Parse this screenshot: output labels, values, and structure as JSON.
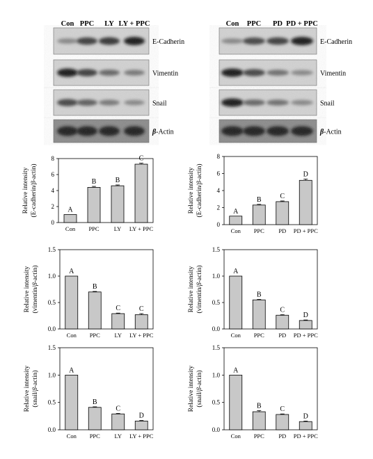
{
  "blots": [
    {
      "lanes": [
        "Con",
        "PPC",
        "LY",
        "LY + PPC"
      ],
      "rows": [
        {
          "label": "E-Cadherin",
          "levels": [
            0.35,
            0.8,
            0.85,
            1.0
          ]
        },
        {
          "label": "Vimentin",
          "levels": [
            1.0,
            0.8,
            0.55,
            0.45
          ]
        },
        {
          "label": "Snail",
          "levels": [
            0.75,
            0.6,
            0.45,
            0.35
          ]
        },
        {
          "label_prefix": "β",
          "label": "-Actin",
          "levels": [
            0.85,
            0.85,
            0.85,
            0.85
          ]
        }
      ]
    },
    {
      "lanes": [
        "Con",
        "PPC",
        "PD",
        "PD + PPC"
      ],
      "rows": [
        {
          "label": "E-Cadherin",
          "levels": [
            0.35,
            0.75,
            0.8,
            1.0
          ]
        },
        {
          "label": "Vimentin",
          "levels": [
            1.0,
            0.75,
            0.5,
            0.35
          ]
        },
        {
          "label": "Snail",
          "levels": [
            1.0,
            0.55,
            0.5,
            0.35
          ]
        },
        {
          "label_prefix": "β",
          "label": "-Actin",
          "levels": [
            0.85,
            0.85,
            0.85,
            0.85
          ]
        }
      ]
    }
  ],
  "chart_data": [
    {
      "type": "bar",
      "categories": [
        "Con",
        "PPC",
        "LY",
        "LY + PPC"
      ],
      "values": [
        1.0,
        4.4,
        4.6,
        7.3
      ],
      "errors": [
        0.0,
        0.12,
        0.1,
        0.12
      ],
      "letters": [
        "A",
        "B",
        "B",
        "C"
      ],
      "ylabel": "Relative intensity",
      "ylabel2": "(E-cadherin/β-actin)",
      "ylim": [
        0,
        8
      ],
      "yticks": [
        "0",
        "2",
        "4",
        "6",
        "8"
      ],
      "bar_color": "#c8c8c8"
    },
    {
      "type": "bar",
      "categories": [
        "Con",
        "PPC",
        "PD",
        "PD + PPC"
      ],
      "values": [
        1.0,
        2.3,
        2.7,
        5.2
      ],
      "errors": [
        0.0,
        0.08,
        0.08,
        0.15
      ],
      "letters": [
        "A",
        "B",
        "C",
        "D"
      ],
      "ylabel": "Relative intensity",
      "ylabel2": "(E-cadherin/β-actin)",
      "ylim": [
        0,
        8
      ],
      "yticks": [
        "0",
        "2",
        "4",
        "6",
        "8"
      ],
      "bar_color": "#c8c8c8"
    },
    {
      "type": "bar",
      "categories": [
        "Con",
        "PPC",
        "LY",
        "LY + PPC"
      ],
      "values": [
        1.0,
        0.7,
        0.29,
        0.27
      ],
      "errors": [
        0.0,
        0.01,
        0.01,
        0.02
      ],
      "letters": [
        "A",
        "B",
        "C",
        "C"
      ],
      "ylabel": "Relative intensity",
      "ylabel2": "(vimentin/β-actin)",
      "ylim": [
        0,
        1.5
      ],
      "yticks": [
        "0.0",
        "0.5",
        "1.0",
        "1.5"
      ],
      "bar_color": "#c8c8c8"
    },
    {
      "type": "bar",
      "categories": [
        "Con",
        "PPC",
        "PD",
        "PD + PPC"
      ],
      "values": [
        1.0,
        0.55,
        0.26,
        0.16
      ],
      "errors": [
        0.0,
        0.01,
        0.01,
        0.01
      ],
      "letters": [
        "A",
        "B",
        "C",
        "D"
      ],
      "ylabel": "Relative intensity",
      "ylabel2": "(vimentin/β-actin)",
      "ylim": [
        0,
        1.5
      ],
      "yticks": [
        "0.0",
        "0.5",
        "1.0",
        "1.5"
      ],
      "bar_color": "#c8c8c8"
    },
    {
      "type": "bar",
      "categories": [
        "Con",
        "PPC",
        "LY",
        "LY + PPC"
      ],
      "values": [
        1.0,
        0.41,
        0.29,
        0.16
      ],
      "errors": [
        0.0,
        0.01,
        0.01,
        0.01
      ],
      "letters": [
        "A",
        "B",
        "C",
        "D"
      ],
      "ylabel": "Relative intensity",
      "ylabel2": "(snail/β-actin)",
      "ylim": [
        0,
        1.5
      ],
      "yticks": [
        "0.0",
        "0.5",
        "1.0",
        "1.5"
      ],
      "bar_color": "#c8c8c8"
    },
    {
      "type": "bar",
      "categories": [
        "Con",
        "PPC",
        "PD",
        "PD + PPC"
      ],
      "values": [
        1.0,
        0.33,
        0.28,
        0.15
      ],
      "errors": [
        0.0,
        0.02,
        0.01,
        0.01
      ],
      "letters": [
        "A",
        "B",
        "C",
        "D"
      ],
      "ylabel": "Relative intensity",
      "ylabel2": "(snail/β-actin)",
      "ylim": [
        0,
        1.5
      ],
      "yticks": [
        "0.0",
        "0.5",
        "1.0",
        "1.5"
      ],
      "bar_color": "#c8c8c8"
    }
  ]
}
